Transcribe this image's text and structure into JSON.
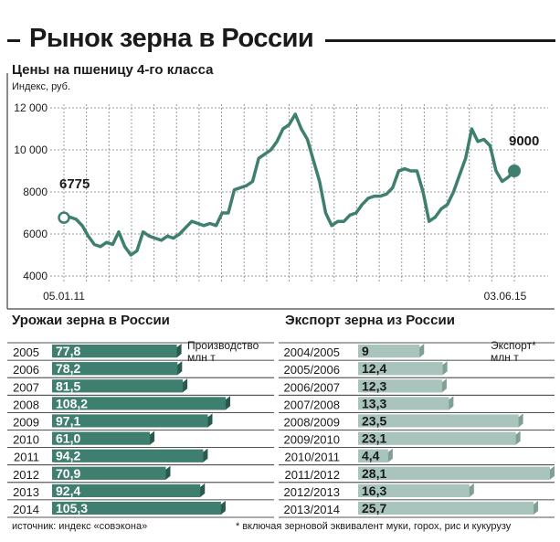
{
  "title": "Рынок зерна в России",
  "colors": {
    "harvest": "#3f7f70",
    "harvest_dark": "#2a5a4f",
    "export": "#a9c4bd",
    "export_dark": "#7f9f97",
    "line": "#3f7f70",
    "grid": "#9a9a9a"
  },
  "chart_data": [
    {
      "type": "line",
      "title": "Цены на пшеницу 4-го класса",
      "ylabel": "Индекс, руб.",
      "ylim": [
        4000,
        12000
      ],
      "yticks": [
        "4000",
        "6000",
        "8000",
        "10 000",
        "12 000"
      ],
      "ytick_values": [
        4000,
        6000,
        8000,
        10000,
        12000
      ],
      "x_labels": [
        "05.01.11",
        "03.06.15"
      ],
      "series": [
        {
          "values": [
            6775,
            6800,
            6700,
            6400,
            5900,
            5500,
            5400,
            5600,
            5500,
            6100,
            5400,
            5000,
            5200,
            6100,
            5900,
            5800,
            5700,
            5900,
            5800,
            6000,
            6300,
            6600,
            6500,
            6400,
            6500,
            6400,
            7000,
            7000,
            8100,
            8200,
            8300,
            8500,
            9600,
            9800,
            10000,
            10400,
            11000,
            11200,
            11700,
            11000,
            10500,
            9500,
            8500,
            7000,
            6400,
            6600,
            6600,
            6900,
            7000,
            7400,
            7700,
            7800,
            7800,
            7900,
            8200,
            9000,
            9100,
            9000,
            9000,
            8000,
            6600,
            6800,
            7200,
            7400,
            8000,
            8800,
            9600,
            11000,
            10400,
            10500,
            10200,
            9000,
            8500,
            8700,
            9000
          ]
        }
      ],
      "annotations": [
        {
          "label": "6775",
          "value": 6775
        },
        {
          "label": "9000",
          "value": 9000
        }
      ]
    },
    {
      "type": "bar",
      "title": "Урожаи зерна в России",
      "legend_lines": [
        "Производство",
        "млн т"
      ],
      "categories": [
        "2005",
        "2006",
        "2007",
        "2008",
        "2009",
        "2010",
        "2011",
        "2012",
        "2013",
        "2014"
      ],
      "values": [
        77.8,
        78.2,
        81.5,
        108.2,
        97.1,
        61.0,
        94.2,
        70.9,
        92.4,
        105.3
      ],
      "value_labels": [
        "77,8",
        "78,2",
        "81,5",
        "108,2",
        "97,1",
        "61,0",
        "94,2",
        "70,9",
        "92,4",
        "105,3"
      ]
    },
    {
      "type": "bar",
      "title": "Экспорт зерна из России",
      "legend_lines": [
        "Экспорт*",
        "млн т"
      ],
      "categories": [
        "2004/2005",
        "2005/2006",
        "2006/2007",
        "2007/2008",
        "2008/2009",
        "2009/2010",
        "2010/2011",
        "2011/2012",
        "2012/2013",
        "2013/2014"
      ],
      "values": [
        9,
        12.4,
        12.3,
        13.3,
        23.5,
        23.1,
        4.4,
        28.1,
        16.3,
        25.7
      ],
      "value_labels": [
        "9",
        "12,4",
        "12,3",
        "13,3",
        "23,5",
        "23,1",
        "4,4",
        "28,1",
        "16,3",
        "25,7"
      ]
    }
  ],
  "source": "источник: индекс «совэкона»",
  "footnote": "* включая зерновой эквивалент муки, горох, рис и кукурузу"
}
